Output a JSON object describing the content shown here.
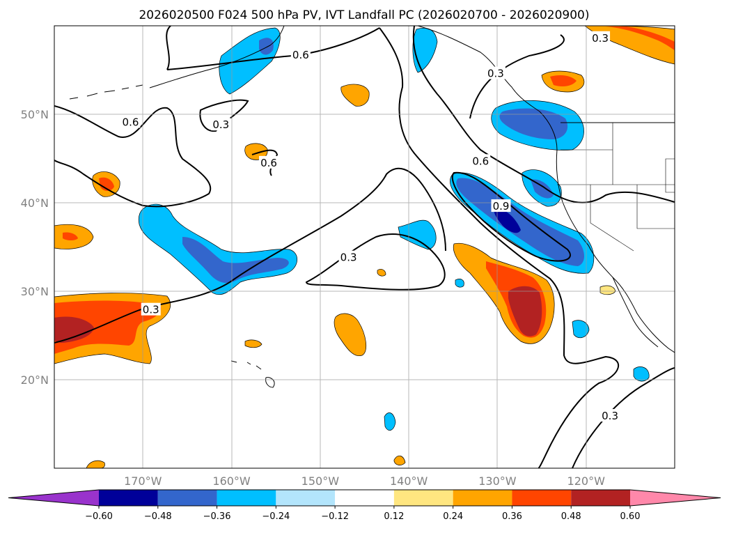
{
  "title": "2026020500 F024 500 hPa PV, IVT Landfall PC (2026020700 - 2026020900)",
  "chart_data": {
    "type": "map",
    "projection": "lat-lon",
    "lon_range": [
      -180,
      -110
    ],
    "lat_range": [
      10,
      60
    ],
    "lat_ticks": [
      {
        "value": 20,
        "label": "20°N"
      },
      {
        "value": 30,
        "label": "30°N"
      },
      {
        "value": 40,
        "label": "40°N"
      },
      {
        "value": 50,
        "label": "50°N"
      }
    ],
    "lon_ticks": [
      {
        "value": -170,
        "label": "170°W"
      },
      {
        "value": -160,
        "label": "160°W"
      },
      {
        "value": -150,
        "label": "150°W"
      },
      {
        "value": -140,
        "label": "140°W"
      },
      {
        "value": -130,
        "label": "130°W"
      },
      {
        "value": -120,
        "label": "120°W"
      }
    ],
    "contour_labels": [
      {
        "text": "0.6",
        "lon": -152.2,
        "lat": 56.7
      },
      {
        "text": "0.3",
        "lon": -130.2,
        "lat": 54.6
      },
      {
        "text": "0.3",
        "lon": -118.4,
        "lat": 58.6
      },
      {
        "text": "0.6",
        "lon": -171.4,
        "lat": 49.1
      },
      {
        "text": "0.3",
        "lon": -161.2,
        "lat": 48.8
      },
      {
        "text": "0.6",
        "lon": -155.8,
        "lat": 44.5
      },
      {
        "text": "0.6",
        "lon": -131.9,
        "lat": 44.7
      },
      {
        "text": "0.9",
        "lon": -129.6,
        "lat": 39.6
      },
      {
        "text": "0.3",
        "lon": -146.8,
        "lat": 33.8
      },
      {
        "text": "0.3",
        "lon": -169.1,
        "lat": 27.9
      },
      {
        "text": "0.3",
        "lon": -117.3,
        "lat": 15.9
      }
    ],
    "colorbar": {
      "ticks": [
        "−0.60",
        "−0.48",
        "−0.36",
        "−0.24",
        "−0.12",
        "0.12",
        "0.24",
        "0.36",
        "0.48",
        "0.60"
      ],
      "levels": [
        -0.6,
        -0.48,
        -0.36,
        -0.24,
        -0.12,
        0.12,
        0.24,
        0.36,
        0.48,
        0.6
      ],
      "colors": [
        "#9933cc",
        "#000099",
        "#3366cc",
        "#00bfff",
        "#b3e5fc",
        "#ffffff",
        "#ffe680",
        "#ffa500",
        "#ff4500",
        "#b22222",
        "#ff88aa"
      ],
      "extend": "both"
    }
  }
}
